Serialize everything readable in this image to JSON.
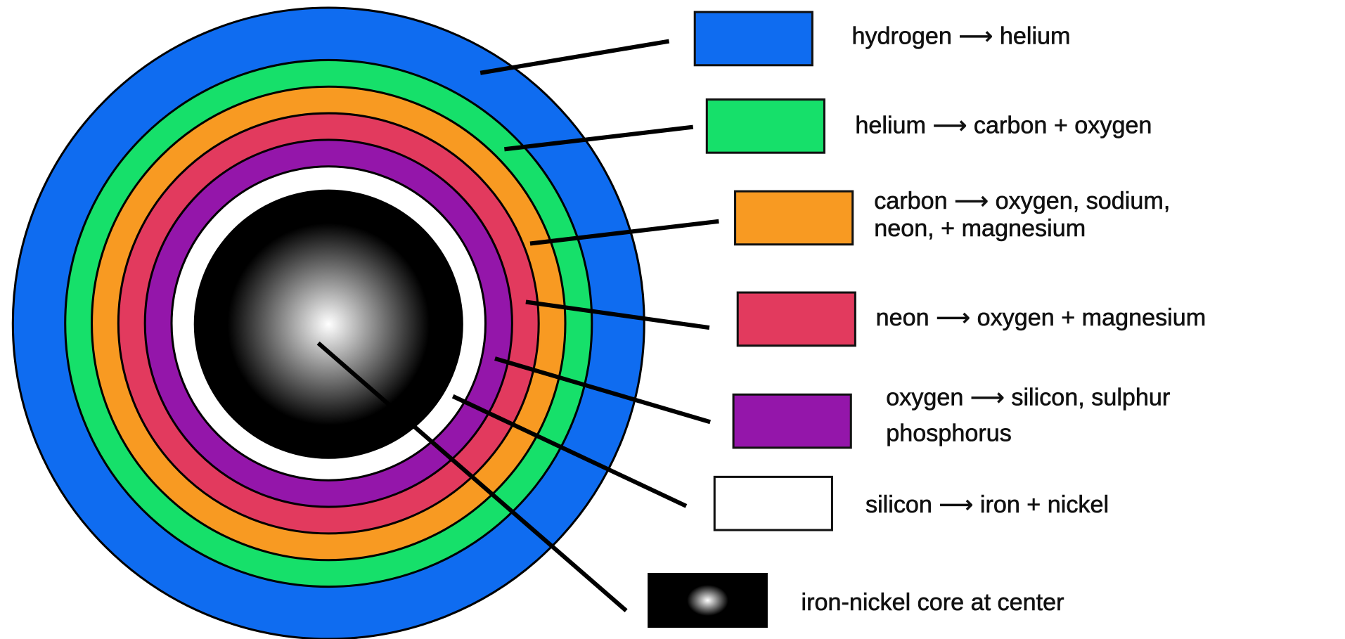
{
  "legend": [
    {
      "lines": [
        "hydrogen ⟶ helium"
      ]
    },
    {
      "lines": [
        "helium ⟶ carbon + oxygen"
      ]
    },
    {
      "lines": [
        "carbon ⟶ oxygen, sodium,",
        "neon, + magnesium"
      ]
    },
    {
      "lines": [
        "neon ⟶ oxygen + magnesium"
      ]
    },
    {
      "lines": [
        "oxygen ⟶ silicon, sulphur",
        "phosphorus"
      ]
    },
    {
      "lines": [
        "silicon ⟶ iron + nickel"
      ]
    },
    {
      "lines": [
        "iron-nickel core at center"
      ]
    }
  ]
}
